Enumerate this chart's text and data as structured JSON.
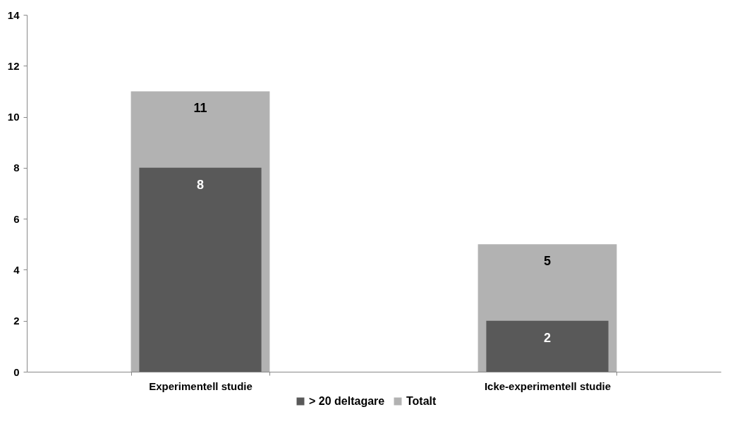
{
  "chart_data": {
    "type": "bar",
    "categories": [
      "Experimentell studie",
      "Icke-experimentell studie"
    ],
    "series": [
      {
        "name": "> 20 deltagare",
        "color": "#595959",
        "values": [
          8,
          2
        ]
      },
      {
        "name": "Totalt",
        "color": "#b2b2b2",
        "values": [
          11,
          5
        ]
      }
    ],
    "data_labels": true,
    "ylim": [
      0,
      14
    ],
    "yticks": [
      0,
      2,
      4,
      6,
      8,
      10,
      12,
      14
    ],
    "grid": false,
    "legend": "bottom"
  }
}
